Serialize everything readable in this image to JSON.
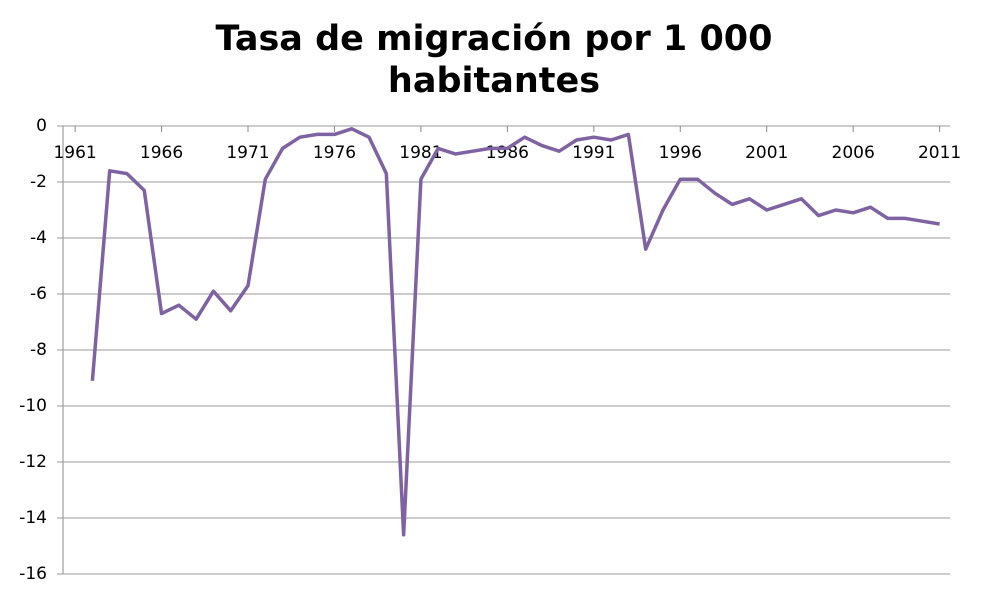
{
  "chart_data": {
    "type": "line",
    "title": "Tasa de migración por 1 000 habitantes",
    "x": [
      1962,
      1963,
      1964,
      1965,
      1966,
      1967,
      1968,
      1969,
      1970,
      1971,
      1972,
      1973,
      1974,
      1975,
      1976,
      1977,
      1978,
      1979,
      1980,
      1981,
      1982,
      1983,
      1984,
      1985,
      1986,
      1987,
      1988,
      1989,
      1990,
      1991,
      1992,
      1993,
      1994,
      1995,
      1996,
      1997,
      1998,
      1999,
      2000,
      2001,
      2002,
      2003,
      2004,
      2005,
      2006,
      2007,
      2008,
      2009,
      2010,
      2011
    ],
    "series": [
      {
        "color": "#7e62a2",
        "values": [
          -9.1,
          -1.6,
          -1.7,
          -2.3,
          -6.7,
          -6.4,
          -6.9,
          -5.9,
          -6.6,
          -5.7,
          -1.9,
          -0.8,
          -0.4,
          -0.3,
          -0.3,
          -0.1,
          -0.4,
          -1.7,
          -14.6,
          -1.9,
          -0.8,
          -1.0,
          -0.9,
          -0.8,
          -0.8,
          -0.4,
          -0.7,
          -0.9,
          -0.5,
          -0.4,
          -0.5,
          -0.3,
          -4.4,
          -3.0,
          -1.9,
          -1.9,
          -2.4,
          -2.8,
          -2.6,
          -3.0,
          -2.8,
          -2.6,
          -3.2,
          -3.0,
          -3.1,
          -2.9,
          -3.3,
          -3.3,
          -3.4,
          -3.5
        ]
      }
    ],
    "xlim": [
      1960.3,
      2011.6
    ],
    "xticks": [
      1961,
      1966,
      1971,
      1976,
      1981,
      1986,
      1991,
      1996,
      2001,
      2006,
      2011
    ],
    "ylim": [
      -16,
      0
    ],
    "yticks": [
      0,
      -2,
      -4,
      -6,
      -8,
      -10,
      -12,
      -14,
      -16
    ],
    "grid": true
  }
}
